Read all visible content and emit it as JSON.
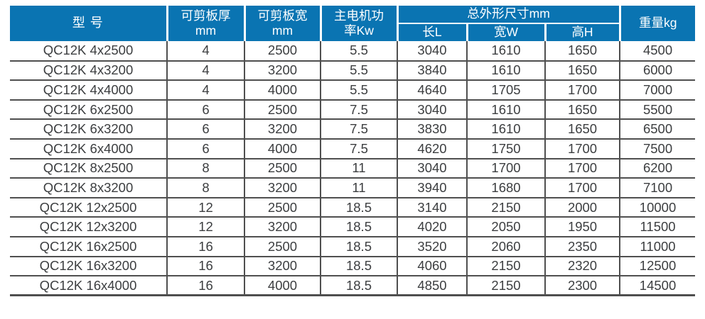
{
  "table": {
    "header": {
      "model": "型 号",
      "thickness": "可剪板厚\nmm",
      "plate_width": "可剪板宽\nmm",
      "motor_power": "主电机功\n率Kw",
      "dimensions_group": "总外形尺寸mm",
      "length_l": "长L",
      "width_w": "宽W",
      "height_h": "高H",
      "weight": "重量kg"
    },
    "column_keys": [
      "model",
      "shear-thickness-mm",
      "shear-width-mm",
      "motor-power-kw",
      "length-l",
      "width-w",
      "height-h",
      "weight-kg"
    ],
    "rows": [
      [
        "QC12K 4x2500",
        "4",
        "2500",
        "5.5",
        "3040",
        "1610",
        "1650",
        "4500"
      ],
      [
        "QC12K 4x3200",
        "4",
        "3200",
        "5.5",
        "3840",
        "1610",
        "1650",
        "6000"
      ],
      [
        "QC12K 4x4000",
        "4",
        "4000",
        "5.5",
        "4640",
        "1705",
        "1700",
        "7000"
      ],
      [
        "QC12K 6x2500",
        "6",
        "2500",
        "7.5",
        "3040",
        "1610",
        "1650",
        "5500"
      ],
      [
        "QC12K 6x3200",
        "6",
        "3200",
        "7.5",
        "3830",
        "1610",
        "1650",
        "6500"
      ],
      [
        "QC12K 6x4000",
        "6",
        "4000",
        "7.5",
        "4620",
        "1750",
        "1700",
        "7500"
      ],
      [
        "QC12K 8x2500",
        "8",
        "2500",
        "11",
        "3040",
        "1700",
        "1700",
        "6200"
      ],
      [
        "QC12K 8x3200",
        "8",
        "3200",
        "11",
        "3940",
        "1680",
        "1700",
        "7100"
      ],
      [
        "QC12K 12x2500",
        "12",
        "2500",
        "18.5",
        "3140",
        "2150",
        "2000",
        "10000"
      ],
      [
        "QC12K 12x3200",
        "12",
        "3200",
        "18.5",
        "4020",
        "2050",
        "1950",
        "11500"
      ],
      [
        "QC12K 16x2500",
        "16",
        "2500",
        "18.5",
        "3520",
        "2060",
        "2350",
        "11000"
      ],
      [
        "QC12K 16x3200",
        "16",
        "3200",
        "18.5",
        "4060",
        "2150",
        "2320",
        "12500"
      ],
      [
        "QC12K 16x4000",
        "16",
        "4000",
        "18.5",
        "4850",
        "2150",
        "2300",
        "14500"
      ]
    ]
  },
  "colors": {
    "header_bg": "#0a74b2",
    "header_text": "#ffffff",
    "body_text": "#3c3e40",
    "grid_line": "#4f4f4f"
  }
}
